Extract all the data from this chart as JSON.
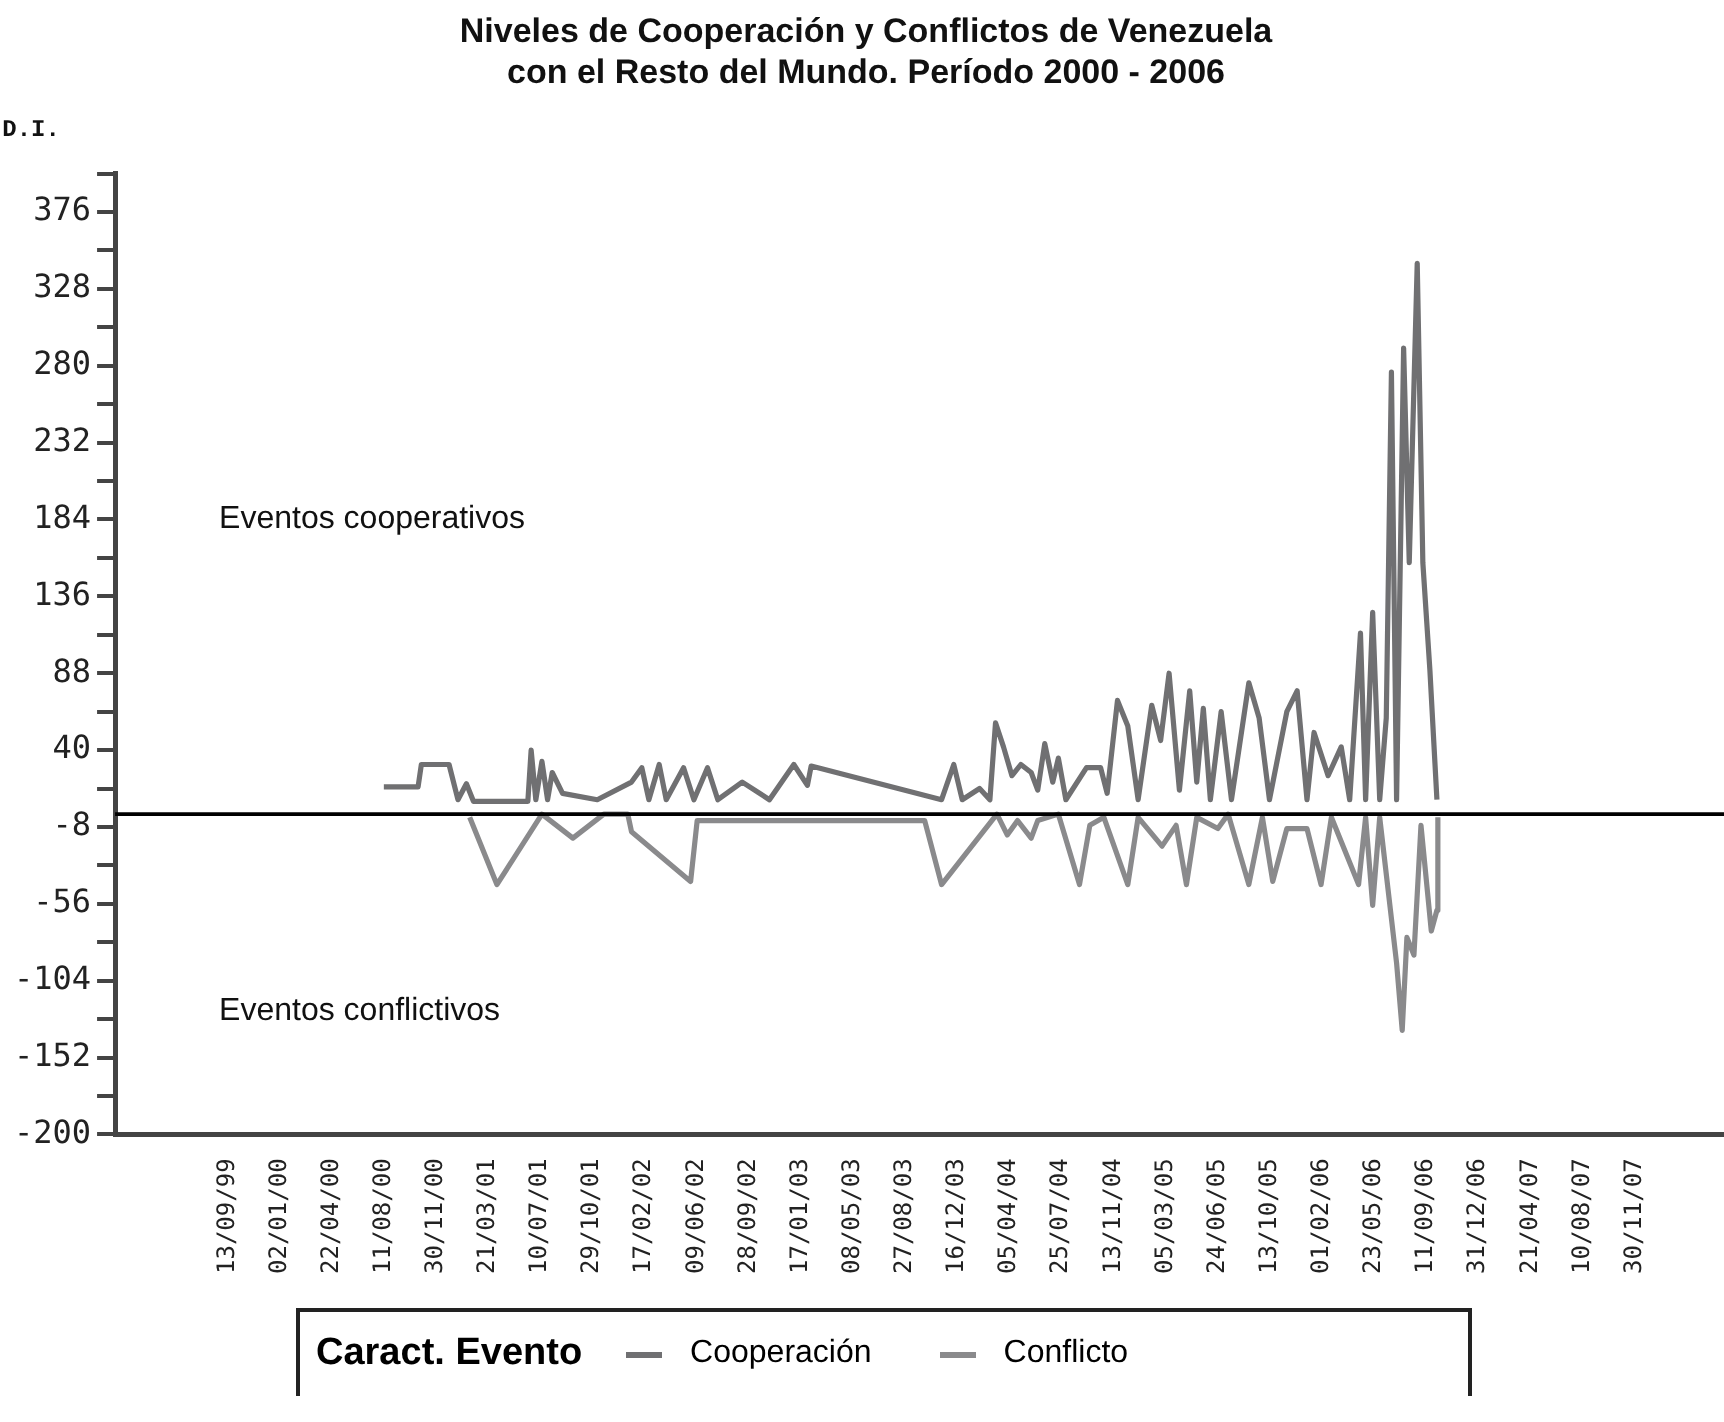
{
  "chart_data": {
    "type": "line",
    "title": "Niveles de Cooperación y Conflictos de Venezuela\ncon el Resto del Mundo. Período 2000 - 2006",
    "ylabel": "D.I.",
    "legend_title": "Caract. Evento",
    "legend": "bottom",
    "grid": false,
    "marker": "none",
    "line_style": "solid",
    "annotations": [
      "Eventos cooperativos",
      "Eventos conflictivos"
    ],
    "xlim": [
      "1999-01-16",
      "2008-06-07"
    ],
    "xticks": [
      {
        "value": "1999-09-13",
        "label": "13/09/99"
      },
      {
        "value": "2000-01-02",
        "label": "02/01/00"
      },
      {
        "value": "2000-04-22",
        "label": "22/04/00"
      },
      {
        "value": "2000-08-11",
        "label": "11/08/00"
      },
      {
        "value": "2000-11-30",
        "label": "30/11/00"
      },
      {
        "value": "2001-03-21",
        "label": "21/03/01"
      },
      {
        "value": "2001-07-10",
        "label": "10/07/01"
      },
      {
        "value": "2001-10-29",
        "label": "29/10/01"
      },
      {
        "value": "2002-02-17",
        "label": "17/02/02"
      },
      {
        "value": "2002-06-09",
        "label": "09/06/02"
      },
      {
        "value": "2002-09-28",
        "label": "28/09/02"
      },
      {
        "value": "2003-01-17",
        "label": "17/01/03"
      },
      {
        "value": "2003-05-08",
        "label": "08/05/03"
      },
      {
        "value": "2003-08-27",
        "label": "27/08/03"
      },
      {
        "value": "2003-12-16",
        "label": "16/12/03"
      },
      {
        "value": "2004-04-05",
        "label": "05/04/04"
      },
      {
        "value": "2004-07-25",
        "label": "25/07/04"
      },
      {
        "value": "2004-11-13",
        "label": "13/11/04"
      },
      {
        "value": "2005-03-05",
        "label": "05/03/05"
      },
      {
        "value": "2005-06-24",
        "label": "24/06/05"
      },
      {
        "value": "2005-10-13",
        "label": "13/10/05"
      },
      {
        "value": "2006-02-01",
        "label": "01/02/06"
      },
      {
        "value": "2006-05-23",
        "label": "23/05/06"
      },
      {
        "value": "2006-09-11",
        "label": "11/09/06"
      },
      {
        "value": "2006-12-31",
        "label": "31/12/06"
      },
      {
        "value": "2007-04-21",
        "label": "21/04/07"
      },
      {
        "value": "2007-08-10",
        "label": "10/08/07"
      },
      {
        "value": "2007-11-30",
        "label": "30/11/07"
      }
    ],
    "ylim": [
      -200,
      400
    ],
    "yticks": [
      -200,
      {
        "value": -176,
        "label": null
      },
      -152,
      {
        "value": -128,
        "label": null
      },
      -104,
      {
        "value": -80,
        "label": null
      },
      -56,
      {
        "value": -32,
        "label": null
      },
      -8,
      {
        "value": 16,
        "label": null
      },
      40,
      {
        "value": 64,
        "label": null
      },
      88,
      {
        "value": 112,
        "label": null
      },
      136,
      {
        "value": 160,
        "label": null
      },
      184,
      {
        "value": 208,
        "label": null
      },
      232,
      {
        "value": 256,
        "label": null
      },
      280,
      {
        "value": 304,
        "label": null
      },
      328,
      {
        "value": 352,
        "label": null
      },
      376,
      {
        "value": 400,
        "label": null
      }
    ],
    "ref_lines": [
      {
        "axis": "y",
        "value": 0,
        "color": "#000000"
      }
    ],
    "series": [
      {
        "name": "Cooperación",
        "color": "#707072",
        "x": [
          "2000-08-11",
          "2000-10-23",
          "2000-10-30",
          "2000-12-28",
          "2001-01-16",
          "2001-02-03",
          "2001-02-18",
          "2001-06-14",
          "2001-06-21",
          "2001-07-01",
          "2001-07-14",
          "2001-07-26",
          "2001-08-05",
          "2001-08-27",
          "2001-11-09",
          "2002-01-21",
          "2002-02-12",
          "2002-02-27",
          "2002-03-21",
          "2002-04-05",
          "2002-05-12",
          "2002-06-03",
          "2002-07-02",
          "2002-07-24",
          "2002-09-14",
          "2002-11-11",
          "2003-01-02",
          "2003-01-31",
          "2003-02-08",
          "2003-11-13",
          "2003-12-09",
          "2003-12-27",
          "2004-02-02",
          "2004-02-24",
          "2004-03-07",
          "2004-03-24",
          "2004-04-11",
          "2004-04-30",
          "2004-05-22",
          "2004-06-05",
          "2004-06-20",
          "2004-07-07",
          "2004-07-19",
          "2004-08-04",
          "2004-09-17",
          "2004-10-17",
          "2004-10-31",
          "2004-11-22",
          "2004-12-14",
          "2005-01-05",
          "2005-02-03",
          "2005-02-22",
          "2005-03-12",
          "2005-04-03",
          "2005-04-25",
          "2005-05-10",
          "2005-05-24",
          "2005-06-08",
          "2005-07-01",
          "2005-07-23",
          "2005-08-29",
          "2005-09-20",
          "2005-10-12",
          "2005-11-18",
          "2005-12-10",
          "2005-12-31",
          "2006-01-15",
          "2006-02-14",
          "2006-03-14",
          "2006-04-01",
          "2006-04-24",
          "2006-05-05",
          "2006-05-20",
          "2006-06-04",
          "2006-06-18",
          "2006-06-29",
          "2006-07-10",
          "2006-07-25",
          "2006-08-06",
          "2006-08-23",
          "2006-09-04",
          "2006-09-19",
          "2006-10-04"
        ],
        "values": [
          17,
          17,
          31,
          31,
          9,
          19,
          8,
          8,
          40,
          9,
          33,
          9,
          26,
          13,
          9,
          20,
          29,
          9,
          31,
          9,
          29,
          9,
          29,
          9,
          20,
          9,
          31,
          18,
          30,
          9,
          31,
          9,
          16,
          9,
          57,
          42,
          24,
          31,
          26,
          15,
          44,
          20,
          35,
          9,
          29,
          29,
          13,
          71,
          55,
          9,
          68,
          46,
          88,
          15,
          77,
          20,
          66,
          9,
          64,
          9,
          82,
          60,
          9,
          64,
          77,
          9,
          51,
          24,
          42,
          9,
          113,
          9,
          126,
          9,
          60,
          276,
          9,
          291,
          157,
          344,
          157,
          90,
          9
        ]
      },
      {
        "name": "Conflicto",
        "color": "#8a8a8c",
        "x": [
          "2001-02-10",
          "2001-04-09",
          "2001-07-14",
          "2001-09-18",
          "2001-11-23",
          "2002-01-13",
          "2002-01-21",
          "2002-05-27",
          "2002-06-10",
          "2003-10-08",
          "2003-11-13",
          "2004-03-10",
          "2004-04-01",
          "2004-04-23",
          "2004-05-22",
          "2004-06-05",
          "2004-07-19",
          "2004-09-02",
          "2004-09-24",
          "2004-10-24",
          "2004-12-14",
          "2005-01-05",
          "2005-02-25",
          "2005-03-27",
          "2005-04-18",
          "2005-05-10",
          "2005-06-24",
          "2005-07-16",
          "2005-08-29",
          "2005-09-27",
          "2005-10-19",
          "2005-11-18",
          "2005-12-31",
          "2006-01-30",
          "2006-02-21",
          "2006-04-20",
          "2006-05-05",
          "2006-05-20",
          "2006-06-04",
          "2006-07-10",
          "2006-07-22",
          "2006-08-01",
          "2006-08-16",
          "2006-08-31",
          "2006-09-22",
          "2006-10-04",
          "2006-10-06"
        ],
        "values": [
          -2,
          -44,
          0,
          -15,
          0,
          0,
          -11,
          -42,
          -4,
          -4,
          -44,
          0,
          -13,
          -4,
          -15,
          -4,
          0,
          -44,
          -7,
          -2,
          -44,
          -2,
          -20,
          -7,
          -44,
          -2,
          -9,
          0,
          -44,
          -2,
          -42,
          -9,
          -9,
          -44,
          -2,
          -44,
          -2,
          -57,
          -2,
          -93,
          -135,
          -77,
          -88,
          -7,
          -73,
          -60,
          -2
        ]
      }
    ]
  }
}
